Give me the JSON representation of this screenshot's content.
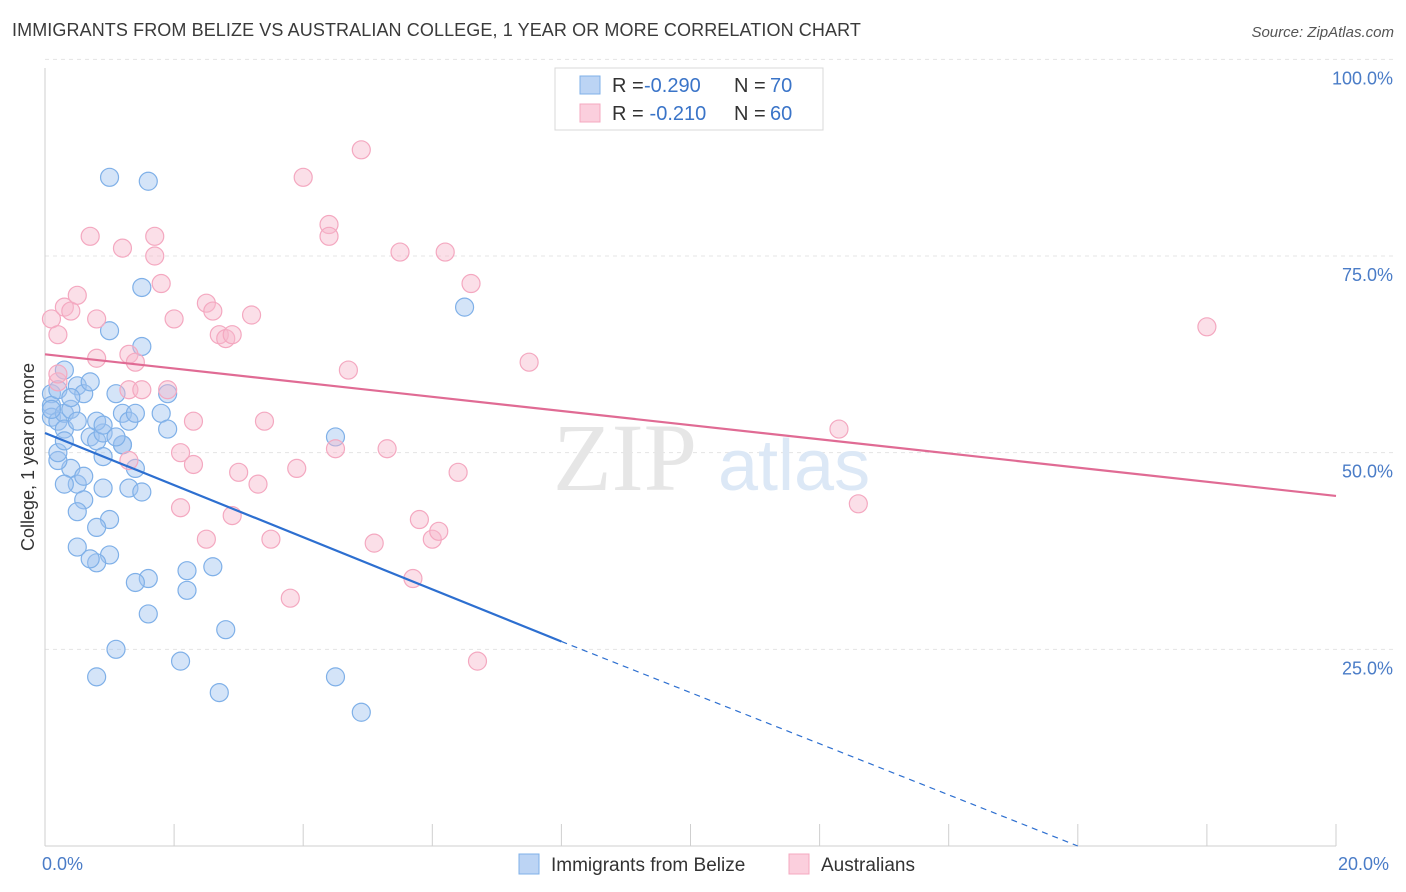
{
  "chart_data": {
    "type": "scatter",
    "title": "IMMIGRANTS FROM BELIZE VS AUSTRALIAN COLLEGE, 1 YEAR OR MORE CORRELATION CHART",
    "source": "Source: ZipAtlas.com",
    "xlabel": "",
    "ylabel": "College, 1 year or more",
    "xlim": [
      0,
      20
    ],
    "ylim": [
      0,
      105
    ],
    "x_tick_labels": [
      "0.0%",
      "20.0%"
    ],
    "y_ticks": [
      25,
      50,
      75,
      100
    ],
    "y_tick_labels": [
      "25.0%",
      "50.0%",
      "75.0%",
      "100.0%"
    ],
    "legend": {
      "entries": [
        {
          "r_label": "R = ",
          "r_value": "-0.290",
          "n_label": "N = ",
          "n_value": "70"
        },
        {
          "r_label": "R = ",
          "r_value": " -0.210",
          "n_label": "N = ",
          "n_value": "60"
        }
      ]
    },
    "watermark": "ZIPatlas",
    "series": [
      {
        "name": "Immigrants from Belize",
        "color": "#7fb0e8",
        "line_color": "#2d6fd0",
        "trend": {
          "x0": 0,
          "y0": 52.5,
          "x_solid_end": 8,
          "y_solid_end": 26,
          "x_dash_end": 16,
          "y_dash_end": 0
        },
        "points": [
          [
            0.1,
            57.5
          ],
          [
            0.1,
            56
          ],
          [
            0.1,
            54.5
          ],
          [
            0.2,
            58
          ],
          [
            0.2,
            54
          ],
          [
            0.3,
            55
          ],
          [
            0.3,
            53
          ],
          [
            0.3,
            60.5
          ],
          [
            0.4,
            55.5
          ],
          [
            0.4,
            48
          ],
          [
            0.2,
            49
          ],
          [
            0.2,
            50
          ],
          [
            0.5,
            46
          ],
          [
            0.6,
            44
          ],
          [
            0.6,
            47
          ],
          [
            0.5,
            54
          ],
          [
            0.5,
            58.5
          ],
          [
            0.6,
            57.5
          ],
          [
            0.7,
            59
          ],
          [
            0.7,
            52
          ],
          [
            0.8,
            51.5
          ],
          [
            0.9,
            52.5
          ],
          [
            0.9,
            49.5
          ],
          [
            0.9,
            45.5
          ],
          [
            1.0,
            41.5
          ],
          [
            1.0,
            37
          ],
          [
            0.8,
            40.5
          ],
          [
            0.8,
            36
          ],
          [
            0.7,
            36.5
          ],
          [
            0.5,
            38
          ],
          [
            0.8,
            54
          ],
          [
            0.9,
            53.5
          ],
          [
            1.1,
            57.5
          ],
          [
            1.2,
            55
          ],
          [
            1.2,
            51
          ],
          [
            1.3,
            54
          ],
          [
            1.3,
            45.5
          ],
          [
            1.4,
            48
          ],
          [
            1.5,
            45
          ],
          [
            1.6,
            34
          ],
          [
            1.4,
            33.5
          ],
          [
            1.6,
            29.5
          ],
          [
            1.8,
            55
          ],
          [
            1.9,
            57.5
          ],
          [
            1.9,
            53
          ],
          [
            2.2,
            35
          ],
          [
            2.2,
            32.5
          ],
          [
            2.6,
            35.5
          ],
          [
            2.8,
            27.5
          ],
          [
            2.1,
            23.5
          ],
          [
            1.1,
            25
          ],
          [
            0.8,
            21.5
          ],
          [
            2.7,
            19.5
          ],
          [
            4.5,
            52
          ],
          [
            4.5,
            21.5
          ],
          [
            4.9,
            17
          ],
          [
            6.5,
            68.5
          ],
          [
            1.0,
            65.5
          ],
          [
            1.5,
            71
          ],
          [
            1.0,
            85
          ],
          [
            1.6,
            84.5
          ],
          [
            1.5,
            63.5
          ],
          [
            0.3,
            51.5
          ],
          [
            0.1,
            55.5
          ],
          [
            0.4,
            57
          ],
          [
            1.2,
            51
          ],
          [
            0.5,
            42.5
          ],
          [
            0.3,
            46
          ],
          [
            1.1,
            52
          ],
          [
            1.4,
            55
          ]
        ]
      },
      {
        "name": "Australians",
        "color": "#f4a8c0",
        "line_color": "#e06b94",
        "trend": {
          "x0": 0,
          "y0": 62.5,
          "x_solid_end": 20,
          "y_solid_end": 44.5
        },
        "points": [
          [
            0.1,
            67
          ],
          [
            0.2,
            65
          ],
          [
            0.2,
            59
          ],
          [
            0.3,
            68.5
          ],
          [
            0.4,
            68
          ],
          [
            0.5,
            70
          ],
          [
            0.8,
            67
          ],
          [
            0.7,
            77.5
          ],
          [
            0.8,
            62
          ],
          [
            1.2,
            76
          ],
          [
            1.3,
            62.5
          ],
          [
            1.3,
            58
          ],
          [
            1.4,
            61.5
          ],
          [
            1.5,
            58
          ],
          [
            1.7,
            77.5
          ],
          [
            1.7,
            75
          ],
          [
            1.8,
            71.5
          ],
          [
            1.9,
            58
          ],
          [
            2.0,
            67
          ],
          [
            2.1,
            50
          ],
          [
            2.1,
            43
          ],
          [
            2.3,
            48.5
          ],
          [
            2.5,
            39
          ],
          [
            2.5,
            69
          ],
          [
            2.6,
            68
          ],
          [
            2.7,
            65
          ],
          [
            2.8,
            64.5
          ],
          [
            2.9,
            65
          ],
          [
            2.9,
            42
          ],
          [
            3.0,
            47.5
          ],
          [
            3.2,
            67.5
          ],
          [
            3.3,
            46
          ],
          [
            3.4,
            54
          ],
          [
            3.5,
            39
          ],
          [
            3.8,
            31.5
          ],
          [
            3.9,
            48
          ],
          [
            4.0,
            85
          ],
          [
            4.4,
            79
          ],
          [
            4.4,
            77.5
          ],
          [
            4.5,
            50.5
          ],
          [
            4.7,
            60.5
          ],
          [
            4.9,
            88.5
          ],
          [
            5.1,
            38.5
          ],
          [
            5.3,
            50.5
          ],
          [
            5.5,
            75.5
          ],
          [
            5.8,
            41.5
          ],
          [
            6.0,
            39
          ],
          [
            6.1,
            40
          ],
          [
            6.2,
            75.5
          ],
          [
            6.4,
            47.5
          ],
          [
            6.6,
            71.5
          ],
          [
            6.7,
            23.5
          ],
          [
            7.5,
            61.5
          ],
          [
            12.3,
            53
          ],
          [
            12.6,
            43.5
          ],
          [
            18.0,
            66
          ],
          [
            0.2,
            60
          ],
          [
            1.3,
            49
          ],
          [
            2.3,
            54
          ],
          [
            5.7,
            34
          ]
        ]
      }
    ]
  }
}
